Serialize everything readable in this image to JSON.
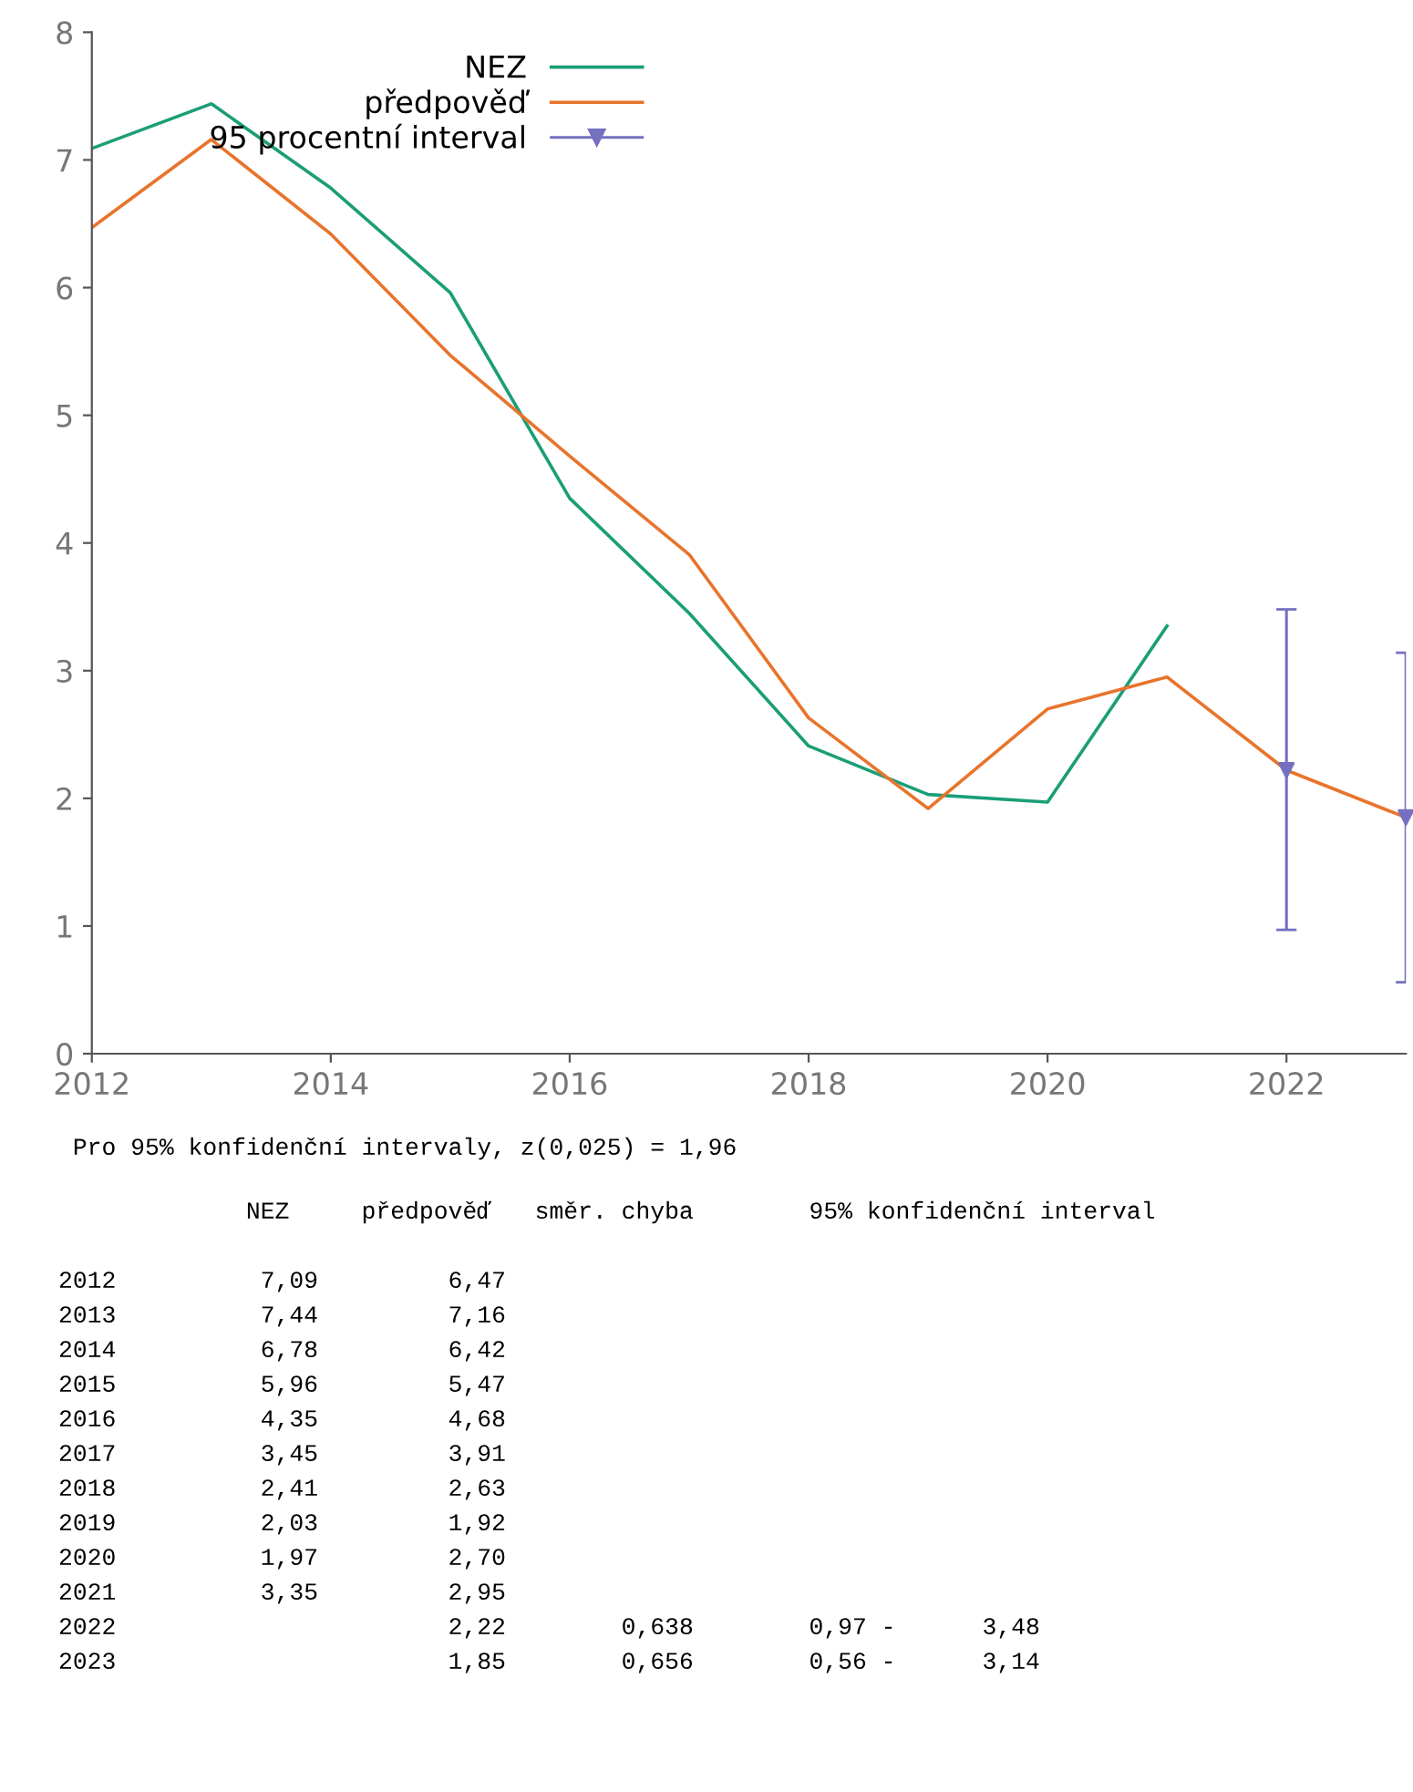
{
  "chart_data": {
    "type": "line",
    "x": [
      2012,
      2013,
      2014,
      2015,
      2016,
      2017,
      2018,
      2019,
      2020,
      2021,
      2022,
      2023
    ],
    "series": [
      {
        "name": "NEZ",
        "color": "#1b9e77",
        "values": [
          7.09,
          7.44,
          6.78,
          5.96,
          4.35,
          3.45,
          2.41,
          2.03,
          1.97,
          3.35,
          null,
          null
        ]
      },
      {
        "name": "předpověď",
        "color": "#e8742c",
        "values": [
          6.47,
          7.16,
          6.42,
          5.47,
          4.68,
          3.91,
          2.63,
          1.92,
          2.7,
          2.95,
          2.22,
          1.85
        ]
      },
      {
        "name": "95 procentní interval",
        "color": "#7570c0",
        "type": "scatter",
        "marker": "triangle",
        "values": [
          null,
          null,
          null,
          null,
          null,
          null,
          null,
          null,
          null,
          null,
          2.22,
          1.85
        ],
        "errors": [
          null,
          null,
          null,
          null,
          null,
          null,
          null,
          null,
          null,
          null,
          [
            0.97,
            3.48
          ],
          [
            0.56,
            3.14
          ]
        ]
      }
    ],
    "xlim": [
      2012,
      2023
    ],
    "xticks": [
      2012,
      2014,
      2016,
      2018,
      2020,
      2022
    ],
    "ylim": [
      0,
      8
    ],
    "yticks": [
      0,
      1,
      2,
      3,
      4,
      5,
      6,
      7,
      8
    ],
    "grid": false,
    "legend": "top left",
    "marker": "none",
    "line_style": "solid",
    "annotations": [
      " Pro 95% konfidenční intervaly, z(0,025) = 1,96",
      "             NEZ     předpověď   směr. chyba        95% konfidenční interval",
      "2012          7,09         6,47",
      "2013          7,44         7,16",
      "2014          6,78         6,42",
      "2015          5,96         5,47",
      "2016          4,35         4,68",
      "2017          3,45         3,91",
      "2018          2,41         2,63",
      "2019          2,03         1,92",
      "2020          1,97         2,70",
      "2021          3,35         2,95",
      "2022                       2,22        0,638        0,97 -      3,48",
      "2023                       1,85        0,656        0,56 -      3,14"
    ]
  }
}
